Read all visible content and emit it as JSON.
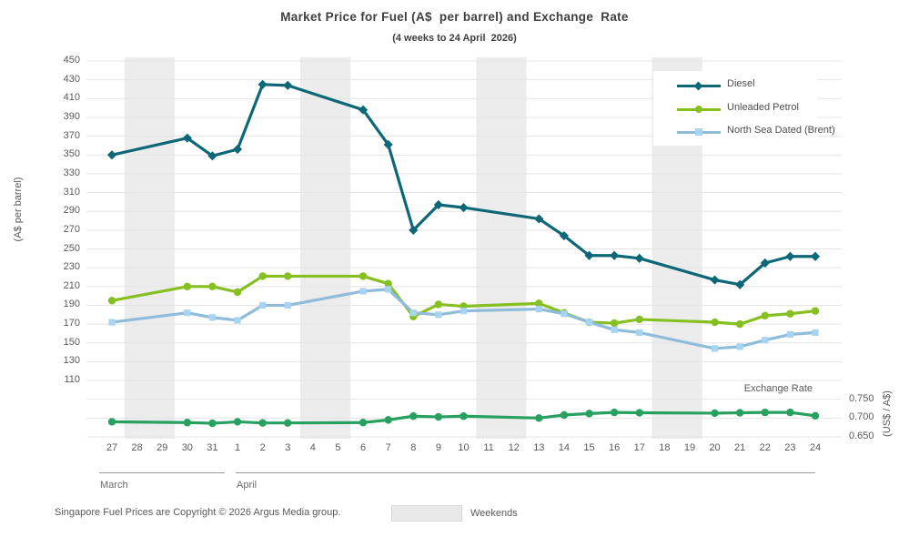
{
  "page": {
    "footer": "Singapore Fuel Prices are Copyright © 2026 Argus Media group.",
    "weekends_label": "Weekends",
    "exchange_rate_label": "Exchange Rate"
  },
  "chart_data": {
    "type": "line",
    "title": "Market Price for Fuel (A$  per barrel) and Exchange  Rate",
    "subtitle": "(4 weeks to 24 April  2026)",
    "grid": true,
    "legend_position": "top-right",
    "weekend_band_color": "#ececec",
    "grid_color": "#e4e4e4",
    "y_left": {
      "label": "(A$ per barrel)",
      "ticks": [
        450,
        430,
        410,
        390,
        370,
        350,
        330,
        310,
        290,
        270,
        250,
        230,
        210,
        190,
        170,
        150,
        130,
        110
      ],
      "range": [
        110,
        450
      ]
    },
    "y_right": {
      "label": "(US$ / A$)",
      "ticks": [
        "0.750",
        "0.700",
        "0.650"
      ],
      "range": [
        0.65,
        0.8
      ]
    },
    "x": {
      "days": [
        {
          "day": 27,
          "month": "March",
          "weekend": false
        },
        {
          "day": 28,
          "month": "March",
          "weekend": true
        },
        {
          "day": 29,
          "month": "March",
          "weekend": true
        },
        {
          "day": 30,
          "month": "March",
          "weekend": false
        },
        {
          "day": 31,
          "month": "March",
          "weekend": false
        },
        {
          "day": 1,
          "month": "April",
          "weekend": false
        },
        {
          "day": 2,
          "month": "April",
          "weekend": false
        },
        {
          "day": 3,
          "month": "April",
          "weekend": false
        },
        {
          "day": 4,
          "month": "April",
          "weekend": true
        },
        {
          "day": 5,
          "month": "April",
          "weekend": true
        },
        {
          "day": 6,
          "month": "April",
          "weekend": false
        },
        {
          "day": 7,
          "month": "April",
          "weekend": false
        },
        {
          "day": 8,
          "month": "April",
          "weekend": false
        },
        {
          "day": 9,
          "month": "April",
          "weekend": false
        },
        {
          "day": 10,
          "month": "April",
          "weekend": false
        },
        {
          "day": 11,
          "month": "April",
          "weekend": true
        },
        {
          "day": 12,
          "month": "April",
          "weekend": true
        },
        {
          "day": 13,
          "month": "April",
          "weekend": false
        },
        {
          "day": 14,
          "month": "April",
          "weekend": false
        },
        {
          "day": 15,
          "month": "April",
          "weekend": false
        },
        {
          "day": 16,
          "month": "April",
          "weekend": false
        },
        {
          "day": 17,
          "month": "April",
          "weekend": false
        },
        {
          "day": 18,
          "month": "April",
          "weekend": true
        },
        {
          "day": 19,
          "month": "April",
          "weekend": true
        },
        {
          "day": 20,
          "month": "April",
          "weekend": false
        },
        {
          "day": 21,
          "month": "April",
          "weekend": false
        },
        {
          "day": 22,
          "month": "April",
          "weekend": false
        },
        {
          "day": 23,
          "month": "April",
          "weekend": false
        },
        {
          "day": 24,
          "month": "April",
          "weekend": false
        }
      ],
      "months": [
        {
          "label": "March",
          "from": 0,
          "to": 4
        },
        {
          "label": "April",
          "from": 5,
          "to": 28
        }
      ],
      "weekday_dates": [
        "27 Mar",
        "30 Mar",
        "31 Mar",
        "1 Apr",
        "2 Apr",
        "3 Apr",
        "6 Apr",
        "7 Apr",
        "8 Apr",
        "9 Apr",
        "10 Apr",
        "13 Apr",
        "14 Apr",
        "15 Apr",
        "16 Apr",
        "17 Apr",
        "20 Apr",
        "21 Apr",
        "22 Apr",
        "23 Apr",
        "24 Apr"
      ]
    },
    "series": [
      {
        "name": "Diesel",
        "color": "#0e6777",
        "marker": "diamond",
        "axis": "left",
        "values": [
          350,
          368,
          349,
          356,
          425,
          424,
          398,
          361,
          270,
          297,
          294,
          282,
          264,
          243,
          243,
          240,
          217,
          212,
          235,
          242,
          242
        ]
      },
      {
        "name": "Unleaded Petrol",
        "color": "#85bf20",
        "marker": "circle",
        "axis": "left",
        "values": [
          195,
          210,
          210,
          204,
          221,
          221,
          221,
          213,
          178,
          191,
          189,
          192,
          182,
          172,
          171,
          175,
          172,
          170,
          179,
          181,
          184
        ]
      },
      {
        "name": "North Sea Dated (Brent)",
        "color": "#8ebcda",
        "marker_color": "#a7d4f1",
        "marker": "square",
        "axis": "left",
        "values": [
          172,
          182,
          177,
          174,
          190,
          190,
          205,
          207,
          182,
          180,
          184,
          186,
          181,
          172,
          164,
          161,
          144,
          146,
          153,
          159,
          161
        ]
      }
    ],
    "exchange_rate": {
      "name": "Exchange Rate",
      "color": "#28a060",
      "marker": "circle",
      "axis": "right",
      "values": [
        0.69,
        0.688,
        0.686,
        0.69,
        0.687,
        0.687,
        0.688,
        0.695,
        0.705,
        0.703,
        0.705,
        0.7,
        0.708,
        0.712,
        0.715,
        0.714,
        0.713,
        0.714,
        0.715,
        0.715,
        0.706
      ]
    }
  }
}
